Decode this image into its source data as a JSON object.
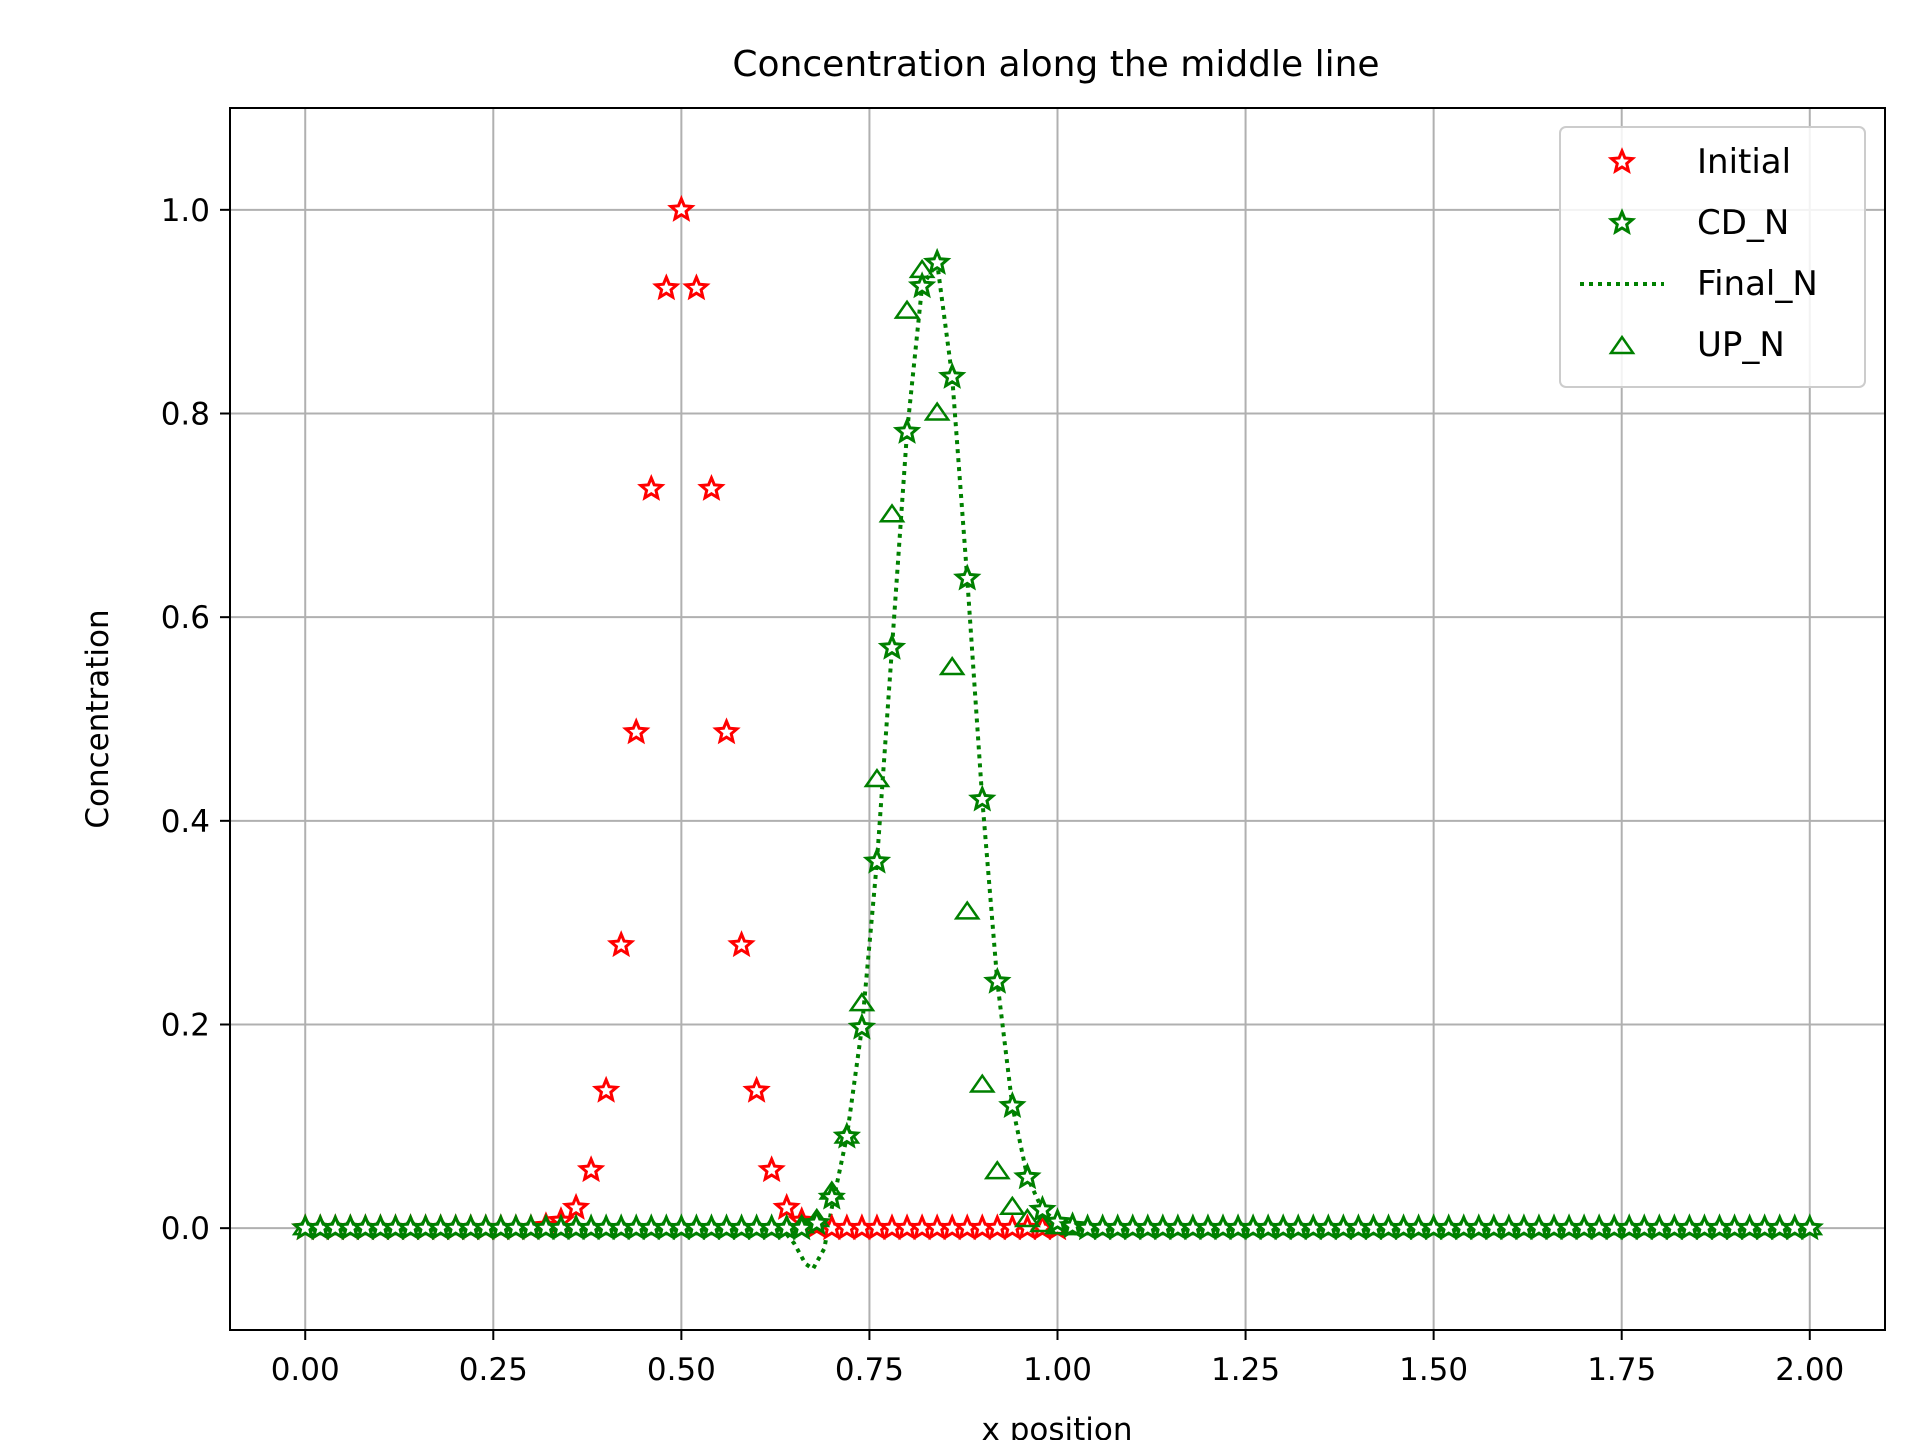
{
  "chart_data": {
    "type": "scatter",
    "title": "Concentration along the middle line",
    "xlabel": "x position",
    "ylabel": "Concentration",
    "xlim": [
      -0.1,
      2.1
    ],
    "ylim": [
      -0.1,
      1.1
    ],
    "xticks": [
      0.0,
      0.25,
      0.5,
      0.75,
      1.0,
      1.25,
      1.5,
      1.75,
      2.0
    ],
    "xtick_labels": [
      "0.00",
      "0.25",
      "0.50",
      "0.75",
      "1.00",
      "1.25",
      "1.50",
      "1.75",
      "2.00"
    ],
    "yticks": [
      0.0,
      0.2,
      0.4,
      0.6,
      0.8,
      1.0
    ],
    "ytick_labels": [
      "0.0",
      "0.2",
      "0.4",
      "0.6",
      "0.8",
      "1.0"
    ],
    "grid": true,
    "legend": "top-right",
    "series": [
      {
        "name": "Initial",
        "marker": "star",
        "color": "#ff0000",
        "x": [
          0.0,
          0.02,
          0.04,
          0.06,
          0.08,
          0.1,
          0.12,
          0.14,
          0.16,
          0.18,
          0.2,
          0.22,
          0.24,
          0.26,
          0.28,
          0.3,
          0.32,
          0.34,
          0.36,
          0.38,
          0.4,
          0.42,
          0.44,
          0.46,
          0.48,
          0.5,
          0.52,
          0.54,
          0.56,
          0.58,
          0.6,
          0.62,
          0.64,
          0.66,
          0.68,
          0.7,
          0.72,
          0.74,
          0.76,
          0.78,
          0.8,
          0.82,
          0.84,
          0.86,
          0.88,
          0.9,
          0.92,
          0.94,
          0.96,
          0.98,
          1.0
        ],
        "y": [
          0,
          0,
          0,
          0,
          0,
          0,
          0,
          0,
          0,
          0,
          0,
          0,
          0,
          0,
          0,
          0,
          0.002,
          0.007,
          0.02,
          0.057,
          0.135,
          0.278,
          0.487,
          0.726,
          0.923,
          1.0,
          0.923,
          0.726,
          0.487,
          0.278,
          0.135,
          0.057,
          0.02,
          0.007,
          0.002,
          0,
          0,
          0,
          0,
          0,
          0,
          0,
          0,
          0,
          0,
          0,
          0,
          0,
          0,
          0,
          0
        ]
      },
      {
        "name": "CD_N",
        "marker": "star",
        "color": "#008000",
        "x": [
          0.0,
          0.02,
          0.04,
          0.06,
          0.08,
          0.1,
          0.12,
          0.14,
          0.16,
          0.18,
          0.2,
          0.22,
          0.24,
          0.26,
          0.28,
          0.3,
          0.32,
          0.34,
          0.36,
          0.38,
          0.4,
          0.42,
          0.44,
          0.46,
          0.48,
          0.5,
          0.52,
          0.54,
          0.56,
          0.58,
          0.6,
          0.62,
          0.64,
          0.66,
          0.68,
          0.7,
          0.72,
          0.74,
          0.76,
          0.78,
          0.8,
          0.82,
          0.84,
          0.86,
          0.88,
          0.9,
          0.92,
          0.94,
          0.96,
          0.98,
          1.0,
          1.02,
          1.04,
          1.06,
          1.08,
          1.1,
          1.12,
          1.14,
          1.16,
          1.18,
          1.2,
          1.22,
          1.24,
          1.26,
          1.28,
          1.3,
          1.32,
          1.34,
          1.36,
          1.38,
          1.4,
          1.42,
          1.44,
          1.46,
          1.48,
          1.5,
          1.52,
          1.54,
          1.56,
          1.58,
          1.6,
          1.62,
          1.64,
          1.66,
          1.68,
          1.7,
          1.72,
          1.74,
          1.76,
          1.78,
          1.8,
          1.82,
          1.84,
          1.86,
          1.88,
          1.9,
          1.92,
          1.94,
          1.96,
          1.98,
          2.0
        ],
        "y": [
          0,
          0,
          0,
          0,
          0,
          0,
          0,
          0,
          0,
          0,
          0,
          0,
          0,
          0,
          0,
          0,
          0,
          0,
          0,
          0,
          0,
          0,
          0,
          0,
          0,
          0,
          0,
          0,
          0,
          0,
          0,
          0,
          0,
          0,
          0.005,
          0.03,
          0.09,
          0.197,
          0.36,
          0.57,
          0.782,
          0.925,
          0.948,
          0.836,
          0.638,
          0.421,
          0.242,
          0.12,
          0.05,
          0.018,
          0.006,
          0.002,
          0,
          0,
          0,
          0,
          0,
          0,
          0,
          0,
          0,
          0,
          0,
          0,
          0,
          0,
          0,
          0,
          0,
          0,
          0,
          0,
          0,
          0,
          0,
          0,
          0,
          0,
          0,
          0,
          0,
          0,
          0,
          0,
          0,
          0,
          0,
          0,
          0,
          0,
          0,
          0,
          0,
          0,
          0,
          0,
          0,
          0,
          0,
          0,
          0
        ]
      },
      {
        "name": "Final_N",
        "marker": "none",
        "linestyle": "dotted",
        "color": "#008000",
        "x": [
          0.0,
          0.6,
          0.63,
          0.65,
          0.665,
          0.675,
          0.69,
          0.7,
          0.72,
          0.74,
          0.76,
          0.78,
          0.8,
          0.82,
          0.84,
          0.86,
          0.88,
          0.9,
          0.92,
          0.94,
          0.96,
          0.98,
          1.0,
          1.02,
          1.05,
          2.0
        ],
        "y": [
          0,
          0,
          0.003,
          -0.015,
          -0.035,
          -0.04,
          -0.02,
          0.02,
          0.09,
          0.197,
          0.36,
          0.57,
          0.782,
          0.925,
          0.948,
          0.836,
          0.638,
          0.421,
          0.242,
          0.12,
          0.05,
          0.018,
          0.006,
          0.002,
          0,
          0
        ]
      },
      {
        "name": "UP_N",
        "marker": "triangle",
        "color": "#008000",
        "x": [
          0.0,
          0.02,
          0.04,
          0.06,
          0.08,
          0.1,
          0.12,
          0.14,
          0.16,
          0.18,
          0.2,
          0.22,
          0.24,
          0.26,
          0.28,
          0.3,
          0.32,
          0.34,
          0.36,
          0.38,
          0.4,
          0.42,
          0.44,
          0.46,
          0.48,
          0.5,
          0.52,
          0.54,
          0.56,
          0.58,
          0.6,
          0.62,
          0.64,
          0.66,
          0.68,
          0.7,
          0.72,
          0.74,
          0.76,
          0.78,
          0.8,
          0.82,
          0.84,
          0.86,
          0.88,
          0.9,
          0.92,
          0.94,
          0.96,
          0.98,
          1.0,
          1.02,
          1.04,
          1.06,
          1.08,
          1.1,
          1.12,
          1.14,
          1.16,
          1.18,
          1.2,
          1.22,
          1.24,
          1.26,
          1.28,
          1.3,
          1.32,
          1.34,
          1.36,
          1.38,
          1.4,
          1.42,
          1.44,
          1.46,
          1.48,
          1.5,
          1.52,
          1.54,
          1.56,
          1.58,
          1.6,
          1.62,
          1.64,
          1.66,
          1.68,
          1.7,
          1.72,
          1.74,
          1.76,
          1.78,
          1.8,
          1.82,
          1.84,
          1.86,
          1.88,
          1.9,
          1.92,
          1.94,
          1.96,
          1.98,
          2.0
        ],
        "y": [
          0,
          0,
          0,
          0,
          0,
          0,
          0,
          0,
          0,
          0,
          0,
          0,
          0,
          0,
          0,
          0,
          0,
          0,
          0,
          0,
          0,
          0,
          0,
          0,
          0,
          0,
          0,
          0,
          0,
          0,
          0,
          0,
          0,
          0.002,
          0.008,
          0.035,
          0.09,
          0.22,
          0.44,
          0.7,
          0.9,
          0.94,
          0.8,
          0.55,
          0.31,
          0.14,
          0.055,
          0.02,
          0.008,
          0.003,
          0.001,
          0,
          0,
          0,
          0,
          0,
          0,
          0,
          0,
          0,
          0,
          0,
          0,
          0,
          0,
          0,
          0,
          0,
          0,
          0,
          0,
          0,
          0,
          0,
          0,
          0,
          0,
          0,
          0,
          0,
          0,
          0,
          0,
          0,
          0,
          0,
          0,
          0,
          0,
          0,
          0,
          0,
          0,
          0,
          0,
          0,
          0,
          0,
          0,
          0,
          0
        ]
      }
    ]
  }
}
